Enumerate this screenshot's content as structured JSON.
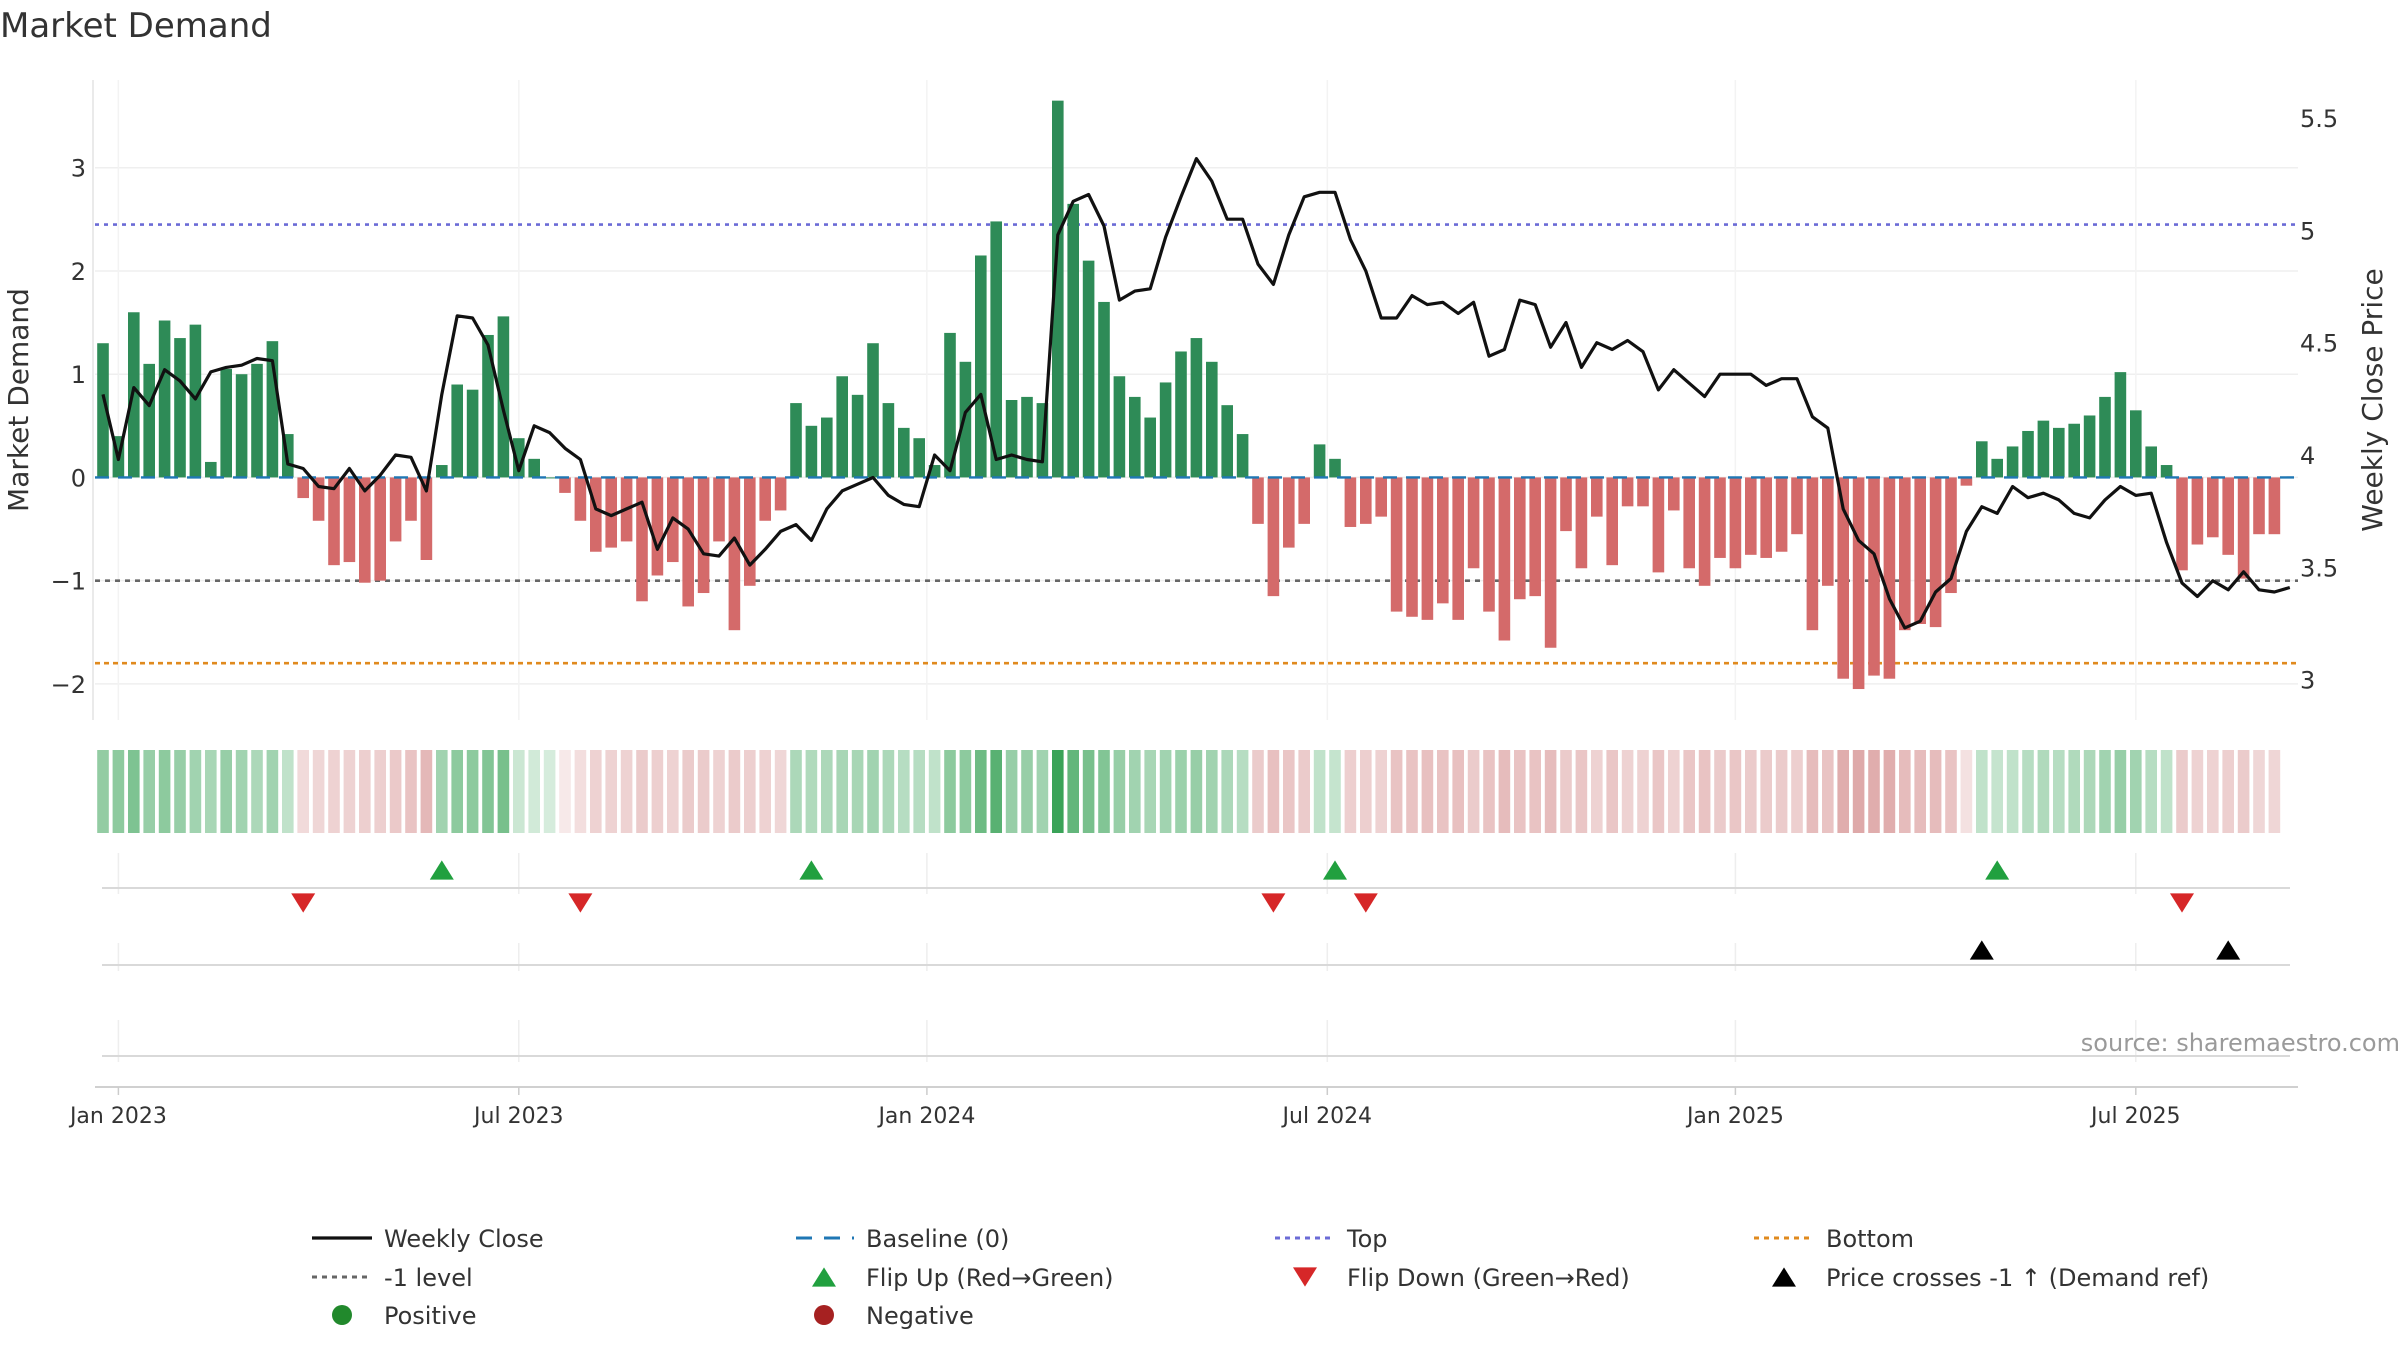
{
  "chart_data": {
    "type": "bar",
    "title": "Market Demand",
    "ylabel_left": "Market Demand",
    "ylabel_right": "Weekly Close Price",
    "source": "source: sharemaestro.com",
    "ylim_left": [
      -2.35,
      3.85
    ],
    "ylim_right": [
      2.82,
      5.67
    ],
    "yticks_left": [
      3,
      2,
      1,
      0,
      -1,
      -2
    ],
    "yticks_left_labels": [
      "3",
      "2",
      "1",
      "0",
      "−1",
      "−2"
    ],
    "yticks_right": [
      5.5,
      5,
      4.5,
      4,
      3.5,
      3
    ],
    "yticks_right_labels": [
      "5.5",
      "5",
      "4.5",
      "4",
      "3.5",
      "3"
    ],
    "xticks": [
      {
        "week": 1,
        "label": "Jan 2023"
      },
      {
        "week": 27,
        "label": "Jul 2023"
      },
      {
        "week": 53.5,
        "label": "Jan 2024"
      },
      {
        "week": 79.5,
        "label": "Jul 2024"
      },
      {
        "week": 106,
        "label": "Jan 2025"
      },
      {
        "week": 132,
        "label": "Jul 2025"
      }
    ],
    "reference_lines": {
      "top": 2.45,
      "minus_one": -1,
      "bottom": -1.8,
      "baseline": 0
    },
    "demand": [
      1.3,
      0.4,
      1.6,
      1.1,
      1.52,
      1.35,
      1.48,
      0.15,
      1.05,
      1.0,
      1.1,
      1.32,
      0.42,
      -0.2,
      -0.42,
      -0.85,
      -0.82,
      -1.02,
      -1.0,
      -0.62,
      -0.42,
      -0.8,
      0.12,
      0.9,
      0.85,
      1.38,
      1.56,
      0.38,
      0.18,
      0.0,
      -0.15,
      -0.42,
      -0.72,
      -0.68,
      -0.62,
      -1.2,
      -0.95,
      -0.82,
      -1.25,
      -1.12,
      -0.62,
      -1.48,
      -1.05,
      -0.42,
      -0.32,
      0.72,
      0.5,
      0.58,
      0.98,
      0.8,
      1.3,
      0.72,
      0.48,
      0.38,
      0.12,
      1.4,
      1.12,
      2.15,
      2.48,
      0.75,
      0.78,
      0.72,
      3.65,
      2.65,
      2.1,
      1.7,
      0.98,
      0.78,
      0.58,
      0.92,
      1.22,
      1.35,
      1.12,
      0.7,
      0.42,
      -0.45,
      -1.15,
      -0.68,
      -0.45,
      0.32,
      0.18,
      -0.48,
      -0.45,
      -0.38,
      -1.3,
      -1.35,
      -1.38,
      -1.22,
      -1.38,
      -0.88,
      -1.3,
      -1.58,
      -1.18,
      -1.15,
      -1.65,
      -0.52,
      -0.88,
      -0.38,
      -0.85,
      -0.28,
      -0.28,
      -0.92,
      -0.32,
      -0.88,
      -1.05,
      -0.78,
      -0.88,
      -0.75,
      -0.78,
      -0.72,
      -0.55,
      -1.48,
      -1.05,
      -1.95,
      -2.05,
      -1.92,
      -1.95,
      -1.48,
      -1.42,
      -1.45,
      -1.12,
      -0.08,
      0.35,
      0.18,
      0.3,
      0.45,
      0.55,
      0.48,
      0.52,
      0.6,
      0.78,
      1.02,
      0.65,
      0.3,
      0.12,
      -0.9,
      -0.65,
      -0.58,
      -0.75,
      -0.98,
      -0.55,
      -0.55
    ],
    "weekly_close": [
      4.27,
      3.98,
      4.3,
      4.22,
      4.38,
      4.33,
      4.25,
      4.37,
      4.39,
      4.4,
      4.43,
      4.42,
      3.96,
      3.94,
      3.86,
      3.85,
      3.94,
      3.84,
      3.91,
      4.0,
      3.99,
      3.84,
      4.27,
      4.62,
      4.61,
      4.49,
      4.2,
      3.93,
      4.13,
      4.1,
      4.03,
      3.98,
      3.76,
      3.73,
      3.76,
      3.79,
      3.58,
      3.72,
      3.67,
      3.56,
      3.55,
      3.63,
      3.51,
      3.58,
      3.66,
      3.69,
      3.62,
      3.76,
      3.84,
      3.87,
      3.9,
      3.82,
      3.78,
      3.77,
      4.0,
      3.93,
      4.19,
      4.27,
      3.98,
      4.0,
      3.98,
      3.97,
      4.98,
      5.13,
      5.16,
      5.02,
      4.69,
      4.73,
      4.74,
      4.97,
      5.15,
      5.32,
      5.22,
      5.05,
      5.05,
      4.85,
      4.76,
      4.98,
      5.15,
      5.17,
      5.17,
      4.96,
      4.82,
      4.61,
      4.61,
      4.71,
      4.67,
      4.68,
      4.63,
      4.68,
      4.44,
      4.47,
      4.69,
      4.67,
      4.48,
      4.59,
      4.39,
      4.5,
      4.47,
      4.51,
      4.46,
      4.29,
      4.38,
      4.32,
      4.26,
      4.36,
      4.36,
      4.36,
      4.31,
      4.34,
      4.34,
      4.17,
      4.12,
      3.76,
      3.62,
      3.56,
      3.36,
      3.23,
      3.26,
      3.39,
      3.45,
      3.66,
      3.77,
      3.74,
      3.86,
      3.81,
      3.83,
      3.8,
      3.74,
      3.72,
      3.8,
      3.86,
      3.82,
      3.83,
      3.61,
      3.43,
      3.37,
      3.44,
      3.4,
      3.48,
      3.4,
      3.39,
      3.41
    ],
    "strip_shades": [
      0.52,
      0.55,
      0.62,
      0.5,
      0.55,
      0.5,
      0.45,
      0.42,
      0.5,
      0.45,
      0.4,
      0.45,
      0.3,
      0.25,
      0.28,
      0.3,
      0.3,
      0.32,
      0.32,
      0.36,
      0.4,
      0.48,
      0.45,
      0.55,
      0.55,
      0.6,
      0.65,
      0.25,
      0.22,
      0.2,
      0.15,
      0.22,
      0.3,
      0.3,
      0.3,
      0.35,
      0.32,
      0.3,
      0.35,
      0.35,
      0.3,
      0.35,
      0.32,
      0.3,
      0.28,
      0.4,
      0.38,
      0.4,
      0.42,
      0.42,
      0.45,
      0.4,
      0.35,
      0.35,
      0.3,
      0.55,
      0.55,
      0.7,
      0.8,
      0.5,
      0.5,
      0.45,
      0.95,
      0.75,
      0.65,
      0.6,
      0.5,
      0.45,
      0.42,
      0.45,
      0.48,
      0.5,
      0.45,
      0.4,
      0.35,
      0.35,
      0.42,
      0.38,
      0.35,
      0.3,
      0.28,
      0.32,
      0.32,
      0.3,
      0.4,
      0.4,
      0.42,
      0.4,
      0.42,
      0.35,
      0.4,
      0.45,
      0.4,
      0.4,
      0.45,
      0.35,
      0.38,
      0.3,
      0.38,
      0.3,
      0.3,
      0.38,
      0.3,
      0.38,
      0.4,
      0.35,
      0.38,
      0.35,
      0.35,
      0.35,
      0.32,
      0.45,
      0.4,
      0.55,
      0.58,
      0.55,
      0.55,
      0.45,
      0.45,
      0.45,
      0.4,
      0.2,
      0.3,
      0.28,
      0.3,
      0.35,
      0.38,
      0.35,
      0.38,
      0.4,
      0.45,
      0.5,
      0.45,
      0.35,
      0.3,
      0.35,
      0.3,
      0.3,
      0.32,
      0.35,
      0.28,
      0.28
    ],
    "flip_up_weeks": [
      22,
      46,
      80,
      123
    ],
    "flip_down_weeks": [
      13,
      31,
      76,
      82,
      135
    ],
    "price_cross_weeks": [
      122,
      138
    ],
    "legend": [
      {
        "symbol": "solid-line",
        "color": "#111111",
        "label": "Weekly Close"
      },
      {
        "symbol": "dashed-line",
        "color": "#1f77b4",
        "label": "Baseline (0)"
      },
      {
        "symbol": "dotted-line",
        "color": "#6b6bd6",
        "label": "Top"
      },
      {
        "symbol": "dotted-line",
        "color": "#e08a1e",
        "label": "Bottom"
      },
      {
        "symbol": "dotted-line",
        "color": "#666666",
        "label": "-1 level"
      },
      {
        "symbol": "triangle-up",
        "color": "#21a03f",
        "label": "Flip Up (Red→Green)"
      },
      {
        "symbol": "triangle-down",
        "color": "#d62728",
        "label": "Flip Down (Green→Red)"
      },
      {
        "symbol": "triangle-up",
        "color": "#000000",
        "label": "Price crosses -1 ↑ (Demand ref)"
      },
      {
        "symbol": "circle",
        "color": "#21892c",
        "label": "Positive"
      },
      {
        "symbol": "circle",
        "color": "#a62121",
        "label": "Negative"
      }
    ],
    "colors": {
      "positive_bar": "#2e8b57",
      "negative_bar": "#d46a6a",
      "price_line": "#111111",
      "baseline": "#1f77b4",
      "top_line": "#6b6bd6",
      "bottom_line": "#e08a1e",
      "minus_one_line": "#666666",
      "flip_up": "#21a03f",
      "flip_down": "#d62728",
      "price_cross": "#000000",
      "strip_green": "#2f9e4f",
      "strip_red": "#c76a6a"
    }
  }
}
